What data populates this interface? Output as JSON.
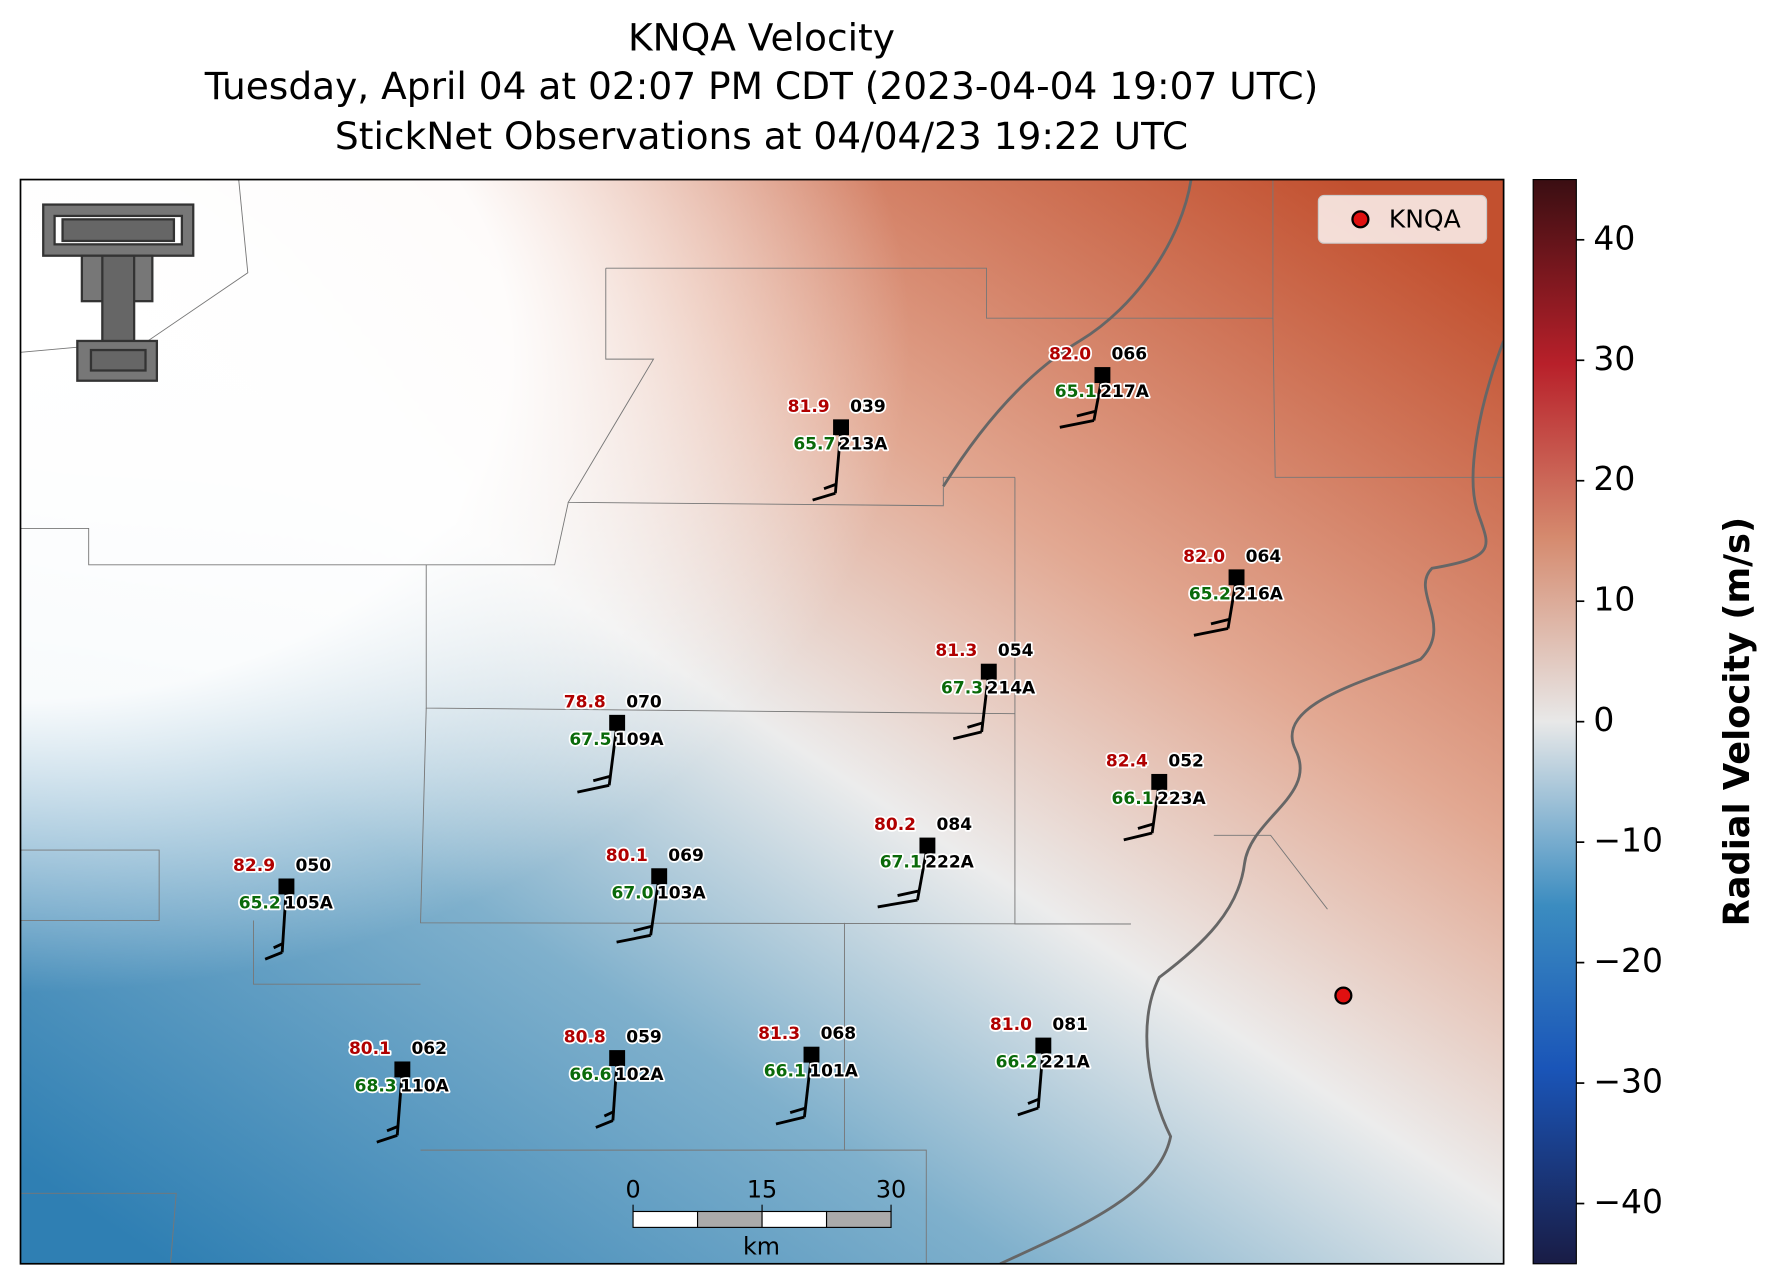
{
  "title": {
    "line1": "KNQA Velocity",
    "line2": "Tuesday, April 04 at 02:07 PM CDT (2023-04-04 19:07 UTC)",
    "line3": "StickNet Observations at 04/04/23 19:22 UTC"
  },
  "legend": {
    "label": "KNQA"
  },
  "colorbar": {
    "label": "Radial Velocity (m/s)",
    "lim": [
      -45,
      45
    ],
    "ticks": [
      {
        "value": -40,
        "label": "−40"
      },
      {
        "value": -30,
        "label": "−30"
      },
      {
        "value": -20,
        "label": "−20"
      },
      {
        "value": -10,
        "label": "−10"
      },
      0,
      10,
      20,
      30,
      40
    ]
  },
  "scale_bar": {
    "ticks": [
      0,
      15,
      30
    ],
    "unit": "km"
  },
  "stations": [
    {
      "id": "213A",
      "code": "039",
      "temperature": "81.9",
      "dewpoint": "65.7"
    },
    {
      "id": "217A",
      "code": "066",
      "temperature": "82.0",
      "dewpoint": "65.1"
    },
    {
      "id": "216A",
      "code": "064",
      "temperature": "82.0",
      "dewpoint": "65.2"
    },
    {
      "id": "214A",
      "code": "054",
      "temperature": "81.3",
      "dewpoint": "67.3"
    },
    {
      "id": "109A",
      "code": "070",
      "temperature": "78.8",
      "dewpoint": "67.5"
    },
    {
      "id": "223A",
      "code": "052",
      "temperature": "82.4",
      "dewpoint": "66.1"
    },
    {
      "id": "222A",
      "code": "084",
      "temperature": "80.2",
      "dewpoint": "67.1"
    },
    {
      "id": "103A",
      "code": "069",
      "temperature": "80.1",
      "dewpoint": "67.0"
    },
    {
      "id": "105A",
      "code": "050",
      "temperature": "82.9",
      "dewpoint": "65.2"
    },
    {
      "id": "221A",
      "code": "081",
      "temperature": "81.0",
      "dewpoint": "66.2"
    },
    {
      "id": "101A",
      "code": "068",
      "temperature": "81.3",
      "dewpoint": "66.1"
    },
    {
      "id": "102A",
      "code": "059",
      "temperature": "80.8",
      "dewpoint": "66.6"
    },
    {
      "id": "110A",
      "code": "062",
      "temperature": "80.1",
      "dewpoint": "68.3"
    }
  ]
}
